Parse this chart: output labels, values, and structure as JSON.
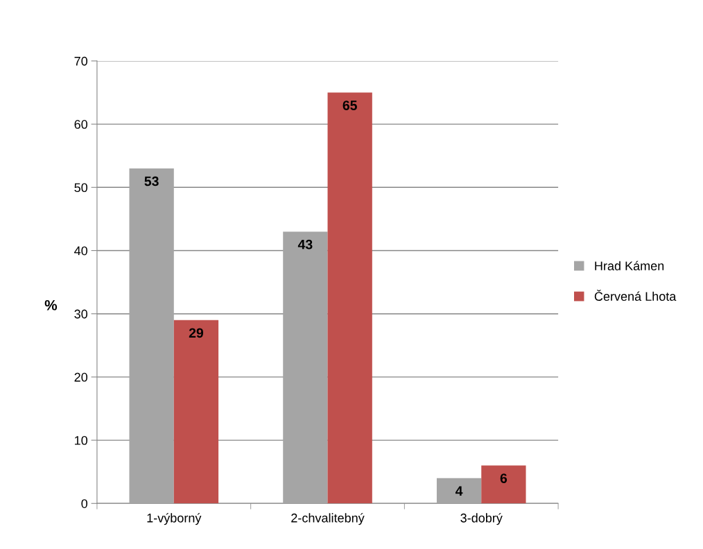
{
  "chart_data": {
    "type": "bar",
    "ylabel": "%",
    "categories": [
      "1-výborný",
      "2-chvalitebný",
      "3-dobrý"
    ],
    "series": [
      {
        "name": "Hrad Kámen",
        "color": "#a5a5a5",
        "values": [
          53,
          43,
          4
        ]
      },
      {
        "name": "Červená Lhota",
        "color": "#c0504d",
        "values": [
          29,
          65,
          6
        ]
      }
    ],
    "ylim": [
      0,
      70
    ],
    "yticks": [
      0,
      10,
      20,
      30,
      40,
      50,
      60,
      70
    ],
    "grid": "y",
    "legend": "right",
    "data_labels": true
  }
}
